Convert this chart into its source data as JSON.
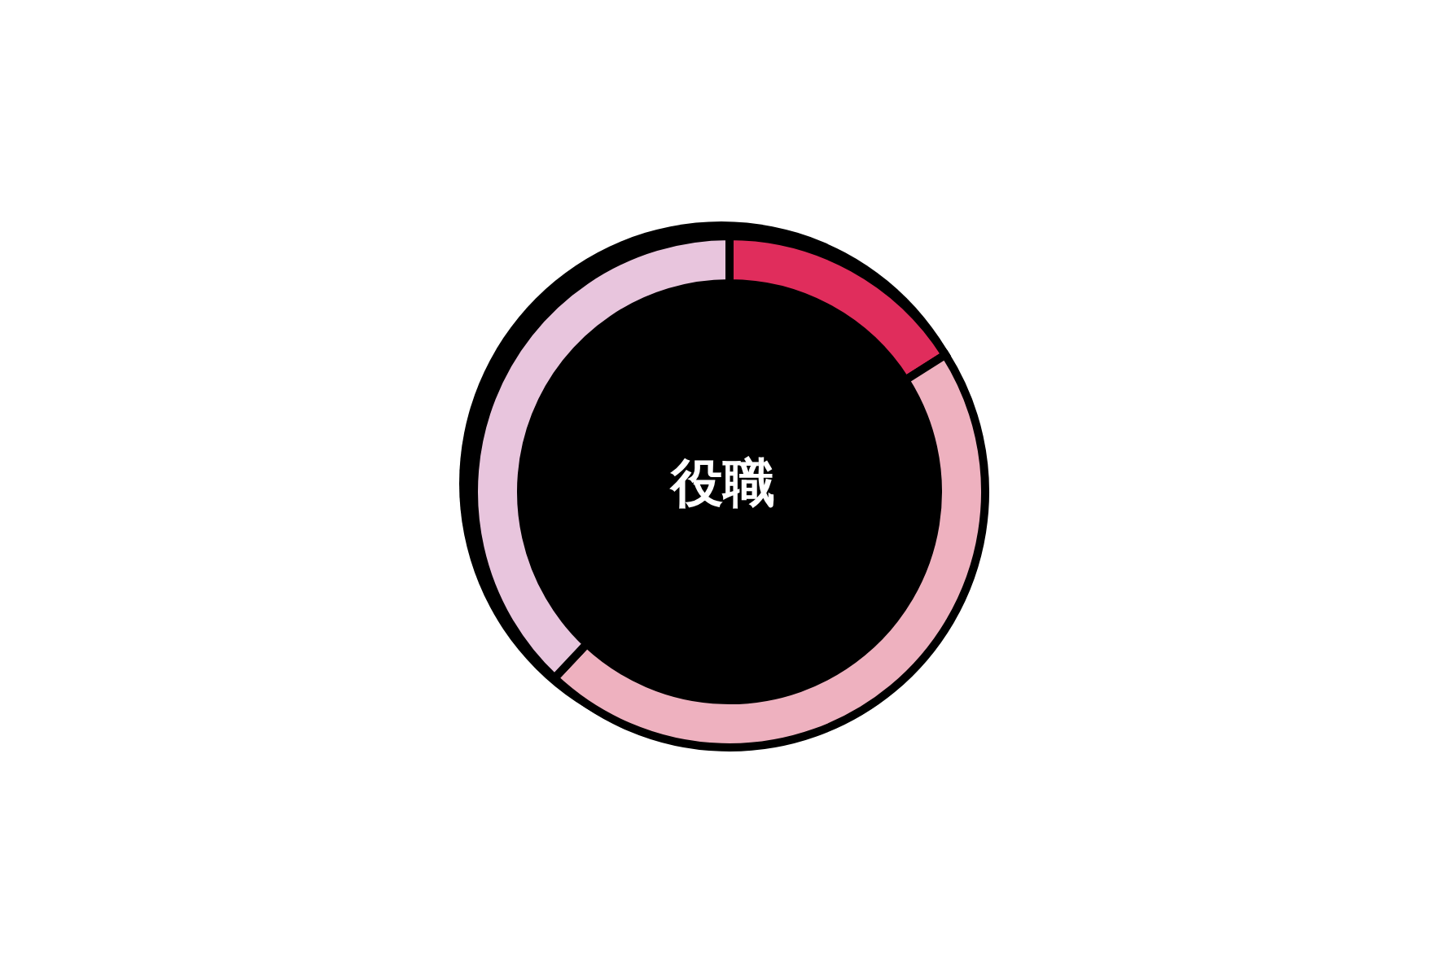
{
  "chart_data": {
    "type": "donut",
    "title": "役職",
    "categories": [
      null,
      null,
      null
    ],
    "values": [
      16,
      46,
      38
    ],
    "colors": [
      "#e02d5c",
      "#eeb1bf",
      "#e8c5dd"
    ]
  }
}
